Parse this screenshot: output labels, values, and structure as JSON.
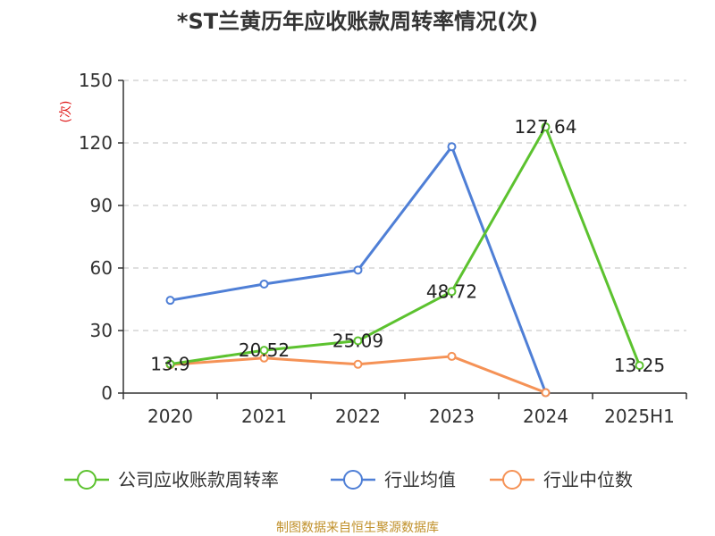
{
  "chart_data": {
    "type": "line",
    "title": "*ST兰黄历年应收账款周转率情况(次)",
    "ylabel": "(次)",
    "xlabel": "",
    "categories": [
      "2020",
      "2021",
      "2022",
      "2023",
      "2024",
      "2025H1"
    ],
    "yticks": [
      "0",
      "30",
      "60",
      "90",
      "120",
      "150"
    ],
    "ylim": [
      0,
      150
    ],
    "grid": true,
    "legend_position": "bottom",
    "series": [
      {
        "name": "公司应收账款周转率",
        "color": "#5cc22f",
        "values": [
          13.9,
          20.52,
          25.09,
          48.72,
          127.64,
          13.25
        ],
        "labels": [
          "13.9",
          "20.52",
          "25.09",
          "48.72",
          "127.64",
          "13.25"
        ]
      },
      {
        "name": "行业均值",
        "color": "#4f7fd6",
        "values": [
          44.5,
          52.3,
          59.0,
          118.2,
          0.2,
          null
        ]
      },
      {
        "name": "行业中位数",
        "color": "#f59256",
        "values": [
          13.6,
          16.8,
          13.8,
          17.6,
          0.2,
          null
        ]
      }
    ]
  },
  "source": "制图数据来自恒生聚源数据库",
  "colors": {
    "axis": "#333333",
    "grid": "#cccccc",
    "ylabel": "#e02020",
    "source": "#c0902a"
  }
}
